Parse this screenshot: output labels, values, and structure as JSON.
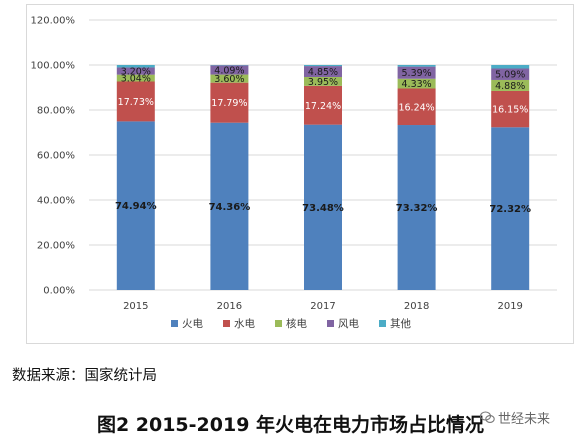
{
  "chart_data": {
    "type": "bar",
    "stacked": true,
    "categories": [
      "2015",
      "2016",
      "2017",
      "2018",
      "2019"
    ],
    "series": [
      {
        "name": "火电",
        "color": "#4f81bd",
        "values": [
          74.94,
          74.36,
          73.48,
          73.32,
          72.32
        ],
        "labels": [
          "74.94%",
          "74.36%",
          "73.48%",
          "73.32%",
          "72.32%"
        ]
      },
      {
        "name": "水电",
        "color": "#c0504d",
        "values": [
          17.73,
          17.79,
          17.24,
          16.24,
          16.15
        ],
        "labels": [
          "17.73%",
          "17.79%",
          "17.24%",
          "16.24%",
          "16.15%"
        ]
      },
      {
        "name": "核电",
        "color": "#9bbb59",
        "values": [
          3.04,
          3.6,
          3.95,
          4.33,
          4.88
        ],
        "labels": [
          "3.04%",
          "3.60%",
          "3.95%",
          "4.33%",
          "4.88%"
        ]
      },
      {
        "name": "风电",
        "color": "#8064a2",
        "values": [
          3.2,
          4.09,
          4.85,
          5.39,
          5.09
        ],
        "labels": [
          "3.20%",
          "4.09%",
          "4.85%",
          "5.39%",
          "5.09%"
        ]
      },
      {
        "name": "其他",
        "color": "#4bacc6",
        "values": [
          1.09,
          0.16,
          0.48,
          0.72,
          1.56
        ],
        "labels": [
          "",
          "",
          "",
          "",
          ""
        ]
      }
    ],
    "y_ticks": [
      "0.00%",
      "20.00%",
      "40.00%",
      "60.00%",
      "80.00%",
      "100.00%",
      "120.00%"
    ],
    "ylim": [
      0,
      120
    ],
    "grid": true,
    "legend_position": "bottom",
    "title": "图2 2015-2019 年火电在电力市场占比情况"
  },
  "source_note": "数据来源：国家统计局",
  "watermark": "世经未来"
}
